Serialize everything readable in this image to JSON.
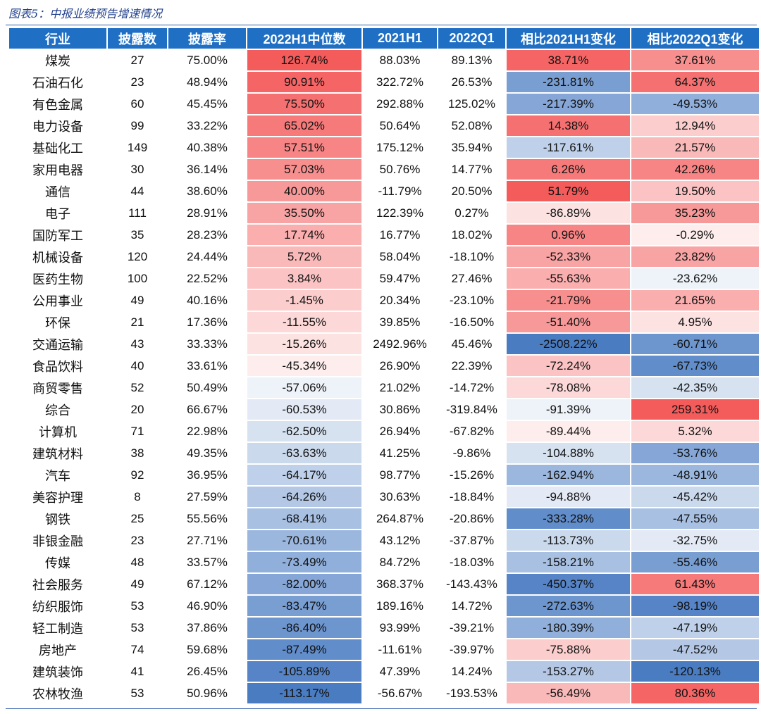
{
  "caption": "图表5：中报业绩预告增速情况",
  "chart_data": {
    "type": "table",
    "title": "图表5：中报业绩预告增速情况",
    "columns": [
      "行业",
      "披露数",
      "披露率",
      "2022H1中位数",
      "2021H1",
      "2022Q1",
      "相比2021H1变化",
      "相比2022Q1变化"
    ],
    "heatmap_columns": [
      3,
      6,
      7
    ],
    "colors": {
      "header_bg": "#1f6fc5",
      "positive": "#f45b5b",
      "negative": "#4a7cc2",
      "neutral": "#ffffff"
    },
    "rows": [
      [
        "煤炭",
        "27",
        "75.00%",
        "126.74%",
        "88.03%",
        "89.13%",
        "38.71%",
        "37.61%"
      ],
      [
        "石油石化",
        "23",
        "48.94%",
        "90.91%",
        "322.72%",
        "26.53%",
        "-231.81%",
        "64.37%"
      ],
      [
        "有色金属",
        "60",
        "45.45%",
        "75.50%",
        "292.88%",
        "125.02%",
        "-217.39%",
        "-49.53%"
      ],
      [
        "电力设备",
        "99",
        "33.22%",
        "65.02%",
        "50.64%",
        "52.08%",
        "14.38%",
        "12.94%"
      ],
      [
        "基础化工",
        "149",
        "40.38%",
        "57.51%",
        "175.12%",
        "35.94%",
        "-117.61%",
        "21.57%"
      ],
      [
        "家用电器",
        "30",
        "36.14%",
        "57.03%",
        "50.76%",
        "14.77%",
        "6.26%",
        "42.26%"
      ],
      [
        "通信",
        "44",
        "38.60%",
        "40.00%",
        "-11.79%",
        "20.50%",
        "51.79%",
        "19.50%"
      ],
      [
        "电子",
        "111",
        "28.91%",
        "35.50%",
        "122.39%",
        "0.27%",
        "-86.89%",
        "35.23%"
      ],
      [
        "国防军工",
        "35",
        "28.23%",
        "17.74%",
        "16.77%",
        "18.02%",
        "0.96%",
        "-0.29%"
      ],
      [
        "机械设备",
        "120",
        "24.44%",
        "5.72%",
        "58.04%",
        "-18.10%",
        "-52.33%",
        "23.82%"
      ],
      [
        "医药生物",
        "100",
        "22.52%",
        "3.84%",
        "59.47%",
        "27.46%",
        "-55.63%",
        "-23.62%"
      ],
      [
        "公用事业",
        "49",
        "40.16%",
        "-1.45%",
        "20.34%",
        "-23.10%",
        "-21.79%",
        "21.65%"
      ],
      [
        "环保",
        "21",
        "17.36%",
        "-11.55%",
        "39.85%",
        "-16.50%",
        "-51.40%",
        "4.95%"
      ],
      [
        "交通运输",
        "43",
        "33.33%",
        "-15.26%",
        "2492.96%",
        "45.46%",
        "-2508.22%",
        "-60.71%"
      ],
      [
        "食品饮料",
        "40",
        "33.61%",
        "-45.34%",
        "26.90%",
        "22.39%",
        "-72.24%",
        "-67.73%"
      ],
      [
        "商贸零售",
        "52",
        "50.49%",
        "-57.06%",
        "21.02%",
        "-14.72%",
        "-78.08%",
        "-42.35%"
      ],
      [
        "综合",
        "20",
        "66.67%",
        "-60.53%",
        "30.86%",
        "-319.84%",
        "-91.39%",
        "259.31%"
      ],
      [
        "计算机",
        "71",
        "22.98%",
        "-62.50%",
        "26.94%",
        "-67.82%",
        "-89.44%",
        "5.32%"
      ],
      [
        "建筑材料",
        "38",
        "49.35%",
        "-63.63%",
        "41.25%",
        "-9.86%",
        "-104.88%",
        "-53.76%"
      ],
      [
        "汽车",
        "92",
        "36.95%",
        "-64.17%",
        "98.77%",
        "-15.26%",
        "-162.94%",
        "-48.91%"
      ],
      [
        "美容护理",
        "8",
        "27.59%",
        "-64.26%",
        "30.63%",
        "-18.84%",
        "-94.88%",
        "-45.42%"
      ],
      [
        "钢铁",
        "25",
        "55.56%",
        "-68.41%",
        "264.87%",
        "-20.86%",
        "-333.28%",
        "-47.55%"
      ],
      [
        "非银金融",
        "23",
        "27.71%",
        "-70.61%",
        "43.12%",
        "-37.87%",
        "-113.73%",
        "-32.75%"
      ],
      [
        "传媒",
        "48",
        "33.57%",
        "-73.49%",
        "84.72%",
        "-18.03%",
        "-158.21%",
        "-55.46%"
      ],
      [
        "社会服务",
        "49",
        "67.12%",
        "-82.00%",
        "368.37%",
        "-143.43%",
        "-450.37%",
        "61.43%"
      ],
      [
        "纺织服饰",
        "53",
        "46.90%",
        "-83.47%",
        "189.16%",
        "14.72%",
        "-272.63%",
        "-98.19%"
      ],
      [
        "轻工制造",
        "53",
        "37.86%",
        "-86.40%",
        "93.99%",
        "-39.21%",
        "-180.39%",
        "-47.19%"
      ],
      [
        "房地产",
        "74",
        "59.68%",
        "-87.49%",
        "-11.61%",
        "-39.97%",
        "-75.88%",
        "-47.52%"
      ],
      [
        "建筑装饰",
        "41",
        "26.45%",
        "-105.89%",
        "47.39%",
        "14.24%",
        "-153.27%",
        "-120.13%"
      ],
      [
        "农林牧渔",
        "53",
        "50.96%",
        "-113.17%",
        "-56.67%",
        "-193.53%",
        "-56.49%",
        "80.36%"
      ]
    ]
  }
}
